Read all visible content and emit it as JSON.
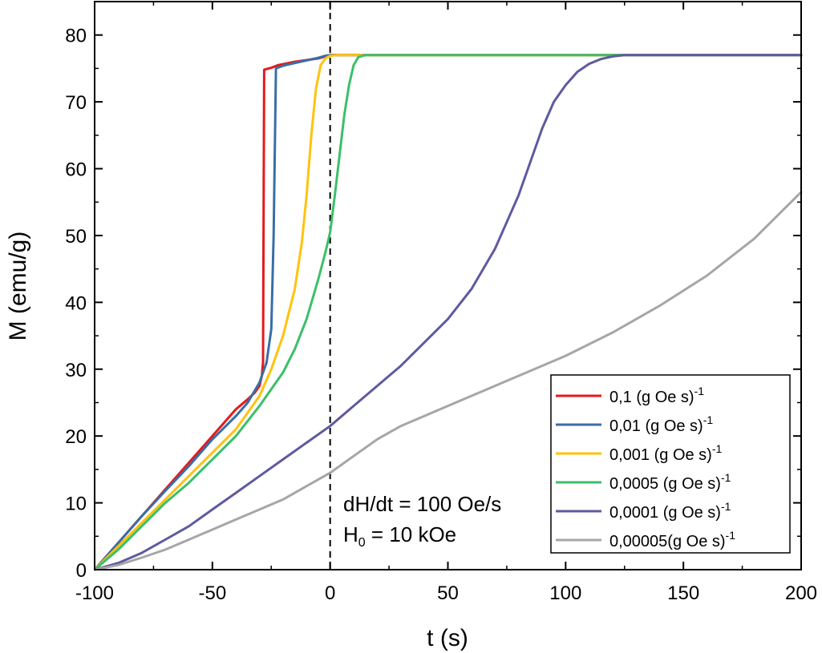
{
  "chart_data": {
    "type": "line",
    "xlabel": "t (s)",
    "ylabel": "M (emu/g)",
    "xlim": [
      -100,
      200
    ],
    "ylim": [
      0,
      85
    ],
    "xticks": [
      -100,
      -50,
      0,
      50,
      100,
      150,
      200
    ],
    "yticks": [
      0,
      10,
      20,
      30,
      40,
      50,
      60,
      70,
      80
    ],
    "xtick_labels": [
      "-100",
      "-50",
      "0",
      "50",
      "100",
      "150",
      "200"
    ],
    "ytick_labels": [
      "0",
      "10",
      "20",
      "30",
      "40",
      "50",
      "60",
      "70",
      "80"
    ],
    "grid": false,
    "legend_position": "bottom-right",
    "vline": {
      "x": 0,
      "style": "dashed"
    },
    "annotations": [
      {
        "text": "dH/dt = 100 Oe/s"
      },
      {
        "text_main": "H",
        "text_sub": "0",
        "text_rest": " = 10 kOe"
      }
    ],
    "series": [
      {
        "name": "0,1 (g Oe s)",
        "name_sup": "-1",
        "color": "#e41a1c",
        "x": [
          -100,
          -90,
          -80,
          -70,
          -60,
          -50,
          -40,
          -35,
          -32,
          -30,
          -29,
          -28.5,
          -28,
          -27,
          -25,
          -22,
          -15,
          -5,
          0,
          50,
          100,
          150,
          200
        ],
        "y": [
          0,
          4,
          8,
          12,
          16,
          20,
          24,
          25.5,
          26.5,
          27.5,
          29,
          31,
          74.8,
          74.9,
          75.1,
          75.5,
          76.0,
          76.5,
          77.0,
          77.0,
          77.0,
          77.0,
          77.0
        ]
      },
      {
        "name": "0,01 (g Oe s)",
        "name_sup": "-1",
        "color": "#3a6ea5",
        "x": [
          -100,
          -90,
          -80,
          -70,
          -60,
          -50,
          -40,
          -35,
          -30,
          -27,
          -25,
          -24,
          -23,
          -20,
          -15,
          -10,
          -5,
          -2,
          0,
          50,
          100,
          150,
          200
        ],
        "y": [
          0,
          4,
          8,
          11.8,
          15.5,
          19.5,
          23,
          25,
          28,
          31,
          36,
          50,
          75,
          75.4,
          75.8,
          76.2,
          76.6,
          76.9,
          77.0,
          77.0,
          77.0,
          77.0,
          77.0
        ]
      },
      {
        "name": "0,001 (g Oe s)",
        "name_sup": "-1",
        "color": "#ffc20e",
        "x": [
          -100,
          -90,
          -80,
          -70,
          -60,
          -50,
          -40,
          -30,
          -25,
          -20,
          -15,
          -12,
          -10,
          -8,
          -6,
          -4,
          -2,
          0,
          3,
          8,
          50,
          100,
          150,
          200
        ],
        "y": [
          0,
          3.5,
          7,
          10.5,
          14,
          17.5,
          21,
          26,
          30,
          35,
          42,
          49,
          56,
          65,
          72,
          75.5,
          76.5,
          76.9,
          77,
          77,
          77,
          77,
          77,
          77
        ]
      },
      {
        "name": "0,0005 (g Oe s)",
        "name_sup": "-1",
        "color": "#3cbf6a",
        "x": [
          -100,
          -90,
          -80,
          -70,
          -60,
          -50,
          -40,
          -30,
          -20,
          -15,
          -10,
          -5,
          -2,
          0,
          2,
          4,
          6,
          8,
          10,
          12,
          15,
          50,
          100,
          150,
          200
        ],
        "y": [
          0,
          3,
          6.5,
          10,
          13,
          16.5,
          20,
          24.5,
          29.5,
          33,
          37.5,
          43.5,
          47.5,
          50.5,
          56,
          62,
          68,
          72.5,
          75.5,
          76.7,
          77,
          77,
          77,
          77,
          77
        ]
      },
      {
        "name": "0,0001 (g Oe s)",
        "name_sup": "-1",
        "color": "#5e5aa0",
        "x": [
          -100,
          -90,
          -80,
          -70,
          -60,
          -50,
          -40,
          -30,
          -20,
          -10,
          0,
          10,
          20,
          30,
          40,
          50,
          60,
          70,
          80,
          85,
          90,
          95,
          100,
          105,
          110,
          115,
          120,
          125,
          130,
          140,
          150,
          200
        ],
        "y": [
          0,
          1,
          2.5,
          4.5,
          6.5,
          9,
          11.5,
          14,
          16.5,
          19,
          21.5,
          24.5,
          27.5,
          30.5,
          34,
          37.5,
          42,
          48,
          56,
          61,
          66,
          70,
          72.5,
          74.5,
          75.7,
          76.4,
          76.8,
          77,
          77,
          77,
          77,
          77
        ]
      },
      {
        "name": "0,00005(g Oe s)",
        "name_sup": "-1",
        "color": "#a6a6a6",
        "x": [
          -100,
          -90,
          -80,
          -70,
          -60,
          -50,
          -40,
          -30,
          -20,
          -10,
          0,
          10,
          20,
          30,
          40,
          50,
          60,
          80,
          100,
          120,
          140,
          160,
          180,
          200
        ],
        "y": [
          0,
          0.7,
          1.8,
          3,
          4.5,
          6,
          7.5,
          9,
          10.5,
          12.5,
          14.5,
          17,
          19.5,
          21.5,
          23,
          24.5,
          26,
          29,
          32,
          35.5,
          39.5,
          44,
          49.5,
          56.5
        ]
      }
    ]
  }
}
